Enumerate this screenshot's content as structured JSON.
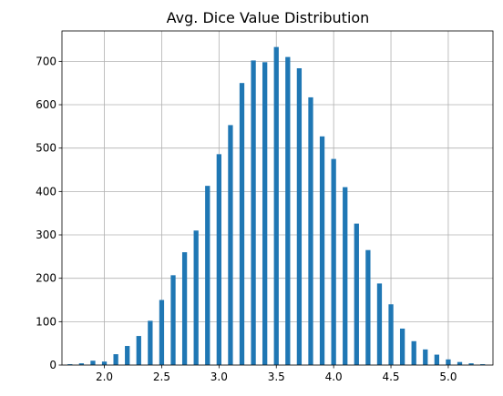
{
  "chart_data": {
    "type": "bar",
    "title": "Avg. Dice Value Distribution",
    "xlabel": "",
    "ylabel": "",
    "xlim": [
      1.63,
      5.39
    ],
    "ylim": [
      0,
      770
    ],
    "grid": true,
    "bar_color": "#1f77b4",
    "bar_width": 0.042,
    "xticks": [
      2.0,
      2.5,
      3.0,
      3.5,
      4.0,
      4.5,
      5.0
    ],
    "xtick_labels": [
      "2.0",
      "2.5",
      "3.0",
      "3.5",
      "4.0",
      "4.5",
      "5.0"
    ],
    "yticks": [
      0,
      100,
      200,
      300,
      400,
      500,
      600,
      700
    ],
    "ytick_labels": [
      "0",
      "100",
      "200",
      "300",
      "400",
      "500",
      "600",
      "700"
    ],
    "x": [
      1.7,
      1.8,
      1.9,
      2.0,
      2.1,
      2.2,
      2.3,
      2.4,
      2.5,
      2.6,
      2.7,
      2.8,
      2.9,
      3.0,
      3.1,
      3.2,
      3.3,
      3.4,
      3.5,
      3.6,
      3.7,
      3.8,
      3.9,
      4.0,
      4.1,
      4.2,
      4.3,
      4.4,
      4.5,
      4.6,
      4.7,
      4.8,
      4.9,
      5.0,
      5.1,
      5.2,
      5.3
    ],
    "values": [
      2,
      4,
      10,
      8,
      25,
      44,
      67,
      102,
      150,
      207,
      260,
      310,
      413,
      486,
      553,
      650,
      702,
      698,
      733,
      710,
      684,
      617,
      527,
      475,
      410,
      326,
      265,
      188,
      140,
      84,
      55,
      36,
      24,
      13,
      7,
      4,
      2
    ]
  }
}
